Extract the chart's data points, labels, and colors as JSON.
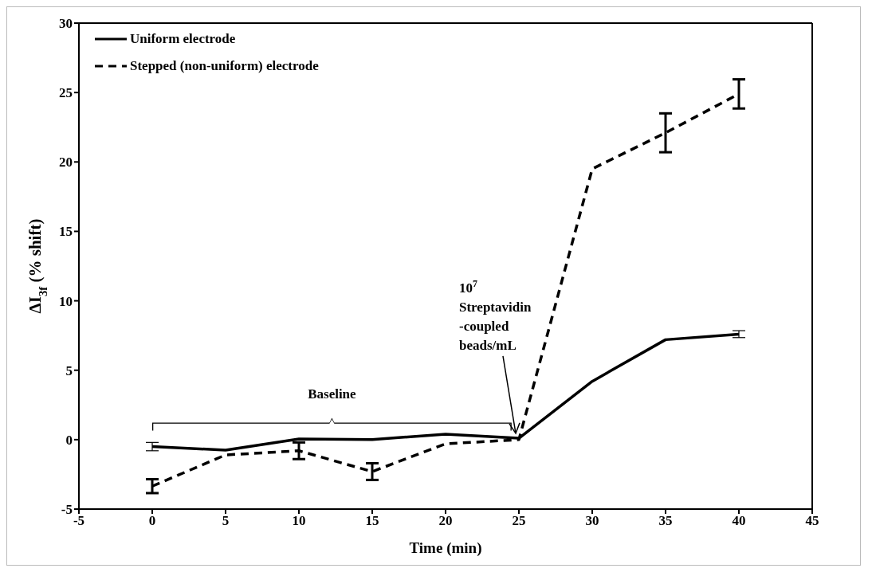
{
  "chart_data": {
    "type": "line",
    "xlabel": "Time (min)",
    "ylabel": "ΔI$_{3f}$ (% shift)",
    "x": [
      0,
      5,
      10,
      15,
      20,
      25,
      30,
      35,
      40
    ],
    "series": [
      {
        "name": "Uniform electrode",
        "color": "#000000",
        "line_style": "solid",
        "values": [
          -0.5,
          -0.75,
          0.05,
          0.0,
          0.4,
          0.1,
          4.2,
          7.2,
          7.6
        ],
        "errors": [
          0.3,
          null,
          null,
          null,
          null,
          null,
          null,
          null,
          0.25
        ]
      },
      {
        "name": "Stepped (non-uniform) electrode",
        "color": "#000000",
        "line_style": "dashed",
        "values": [
          -3.35,
          -1.1,
          -0.8,
          -2.3,
          -0.3,
          0.0,
          19.5,
          22.1,
          24.9
        ],
        "errors": [
          0.5,
          null,
          0.6,
          0.6,
          null,
          null,
          null,
          1.4,
          1.05
        ]
      }
    ],
    "xlim": [
      -5,
      45
    ],
    "xticks": [
      -5,
      0,
      5,
      10,
      15,
      20,
      25,
      30,
      35,
      40,
      45
    ],
    "ylim": [
      -5,
      30
    ],
    "yticks": [
      -5,
      0,
      5,
      10,
      15,
      20,
      25,
      30
    ],
    "grid": false,
    "legend": "top left",
    "marker": "none",
    "annotations": [
      {
        "text": "10$^{7}$ Streptavidin -coupled beads/mL",
        "x": 25,
        "y": 0
      },
      "Baseline"
    ]
  }
}
